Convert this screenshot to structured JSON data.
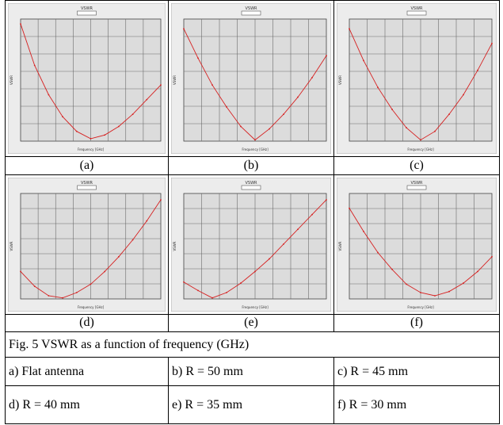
{
  "caption": "Fig. 5 VSWR as a function of frequency (GHz)",
  "panel_labels": [
    "(a)",
    "(b)",
    "(c)",
    "(d)",
    "(e)",
    "(f)"
  ],
  "options": [
    "a)   Flat antenna",
    "b)  R = 50 mm",
    "c)  R = 45 mm",
    "d) R = 40 mm",
    "e)  R = 35 mm",
    "f)  R = 30 mm"
  ],
  "plot_header": "VSWR",
  "axis_label_x": "Frequency [GHz]",
  "axis_label_y": "VSWR",
  "colors": {
    "curve": "#d62020",
    "grid": "#6b6b6b",
    "plot_bg": "#dcdcdc",
    "frame_bg": "#ececec"
  },
  "chart_data": [
    {
      "type": "line",
      "panel": "(a)",
      "x": [
        0,
        0.1,
        0.2,
        0.3,
        0.4,
        0.5,
        0.6,
        0.7,
        0.8,
        0.9,
        1.0
      ],
      "values": [
        5.8,
        4.1,
        2.9,
        2.0,
        1.4,
        1.1,
        1.25,
        1.6,
        2.1,
        2.7,
        3.3
      ],
      "ylim": [
        1,
        6
      ]
    },
    {
      "type": "line",
      "panel": "(b)",
      "x": [
        0,
        0.1,
        0.2,
        0.3,
        0.4,
        0.5,
        0.6,
        0.7,
        0.8,
        0.9,
        1.0
      ],
      "values": [
        5.6,
        4.4,
        3.3,
        2.4,
        1.6,
        1.05,
        1.5,
        2.1,
        2.8,
        3.6,
        4.5
      ],
      "ylim": [
        1,
        6
      ]
    },
    {
      "type": "line",
      "panel": "(c)",
      "x": [
        0,
        0.1,
        0.2,
        0.3,
        0.4,
        0.5,
        0.6,
        0.7,
        0.8,
        0.9,
        1.0
      ],
      "values": [
        5.6,
        4.3,
        3.2,
        2.3,
        1.55,
        1.05,
        1.4,
        2.1,
        2.9,
        3.9,
        5.0
      ],
      "ylim": [
        1,
        6
      ]
    },
    {
      "type": "line",
      "panel": "(d)",
      "x": [
        0,
        0.1,
        0.2,
        0.3,
        0.4,
        0.5,
        0.6,
        0.7,
        0.8,
        0.9,
        1.0
      ],
      "values": [
        2.3,
        1.6,
        1.15,
        1.05,
        1.3,
        1.7,
        2.3,
        3.0,
        3.8,
        4.7,
        5.7
      ],
      "ylim": [
        1,
        6
      ]
    },
    {
      "type": "line",
      "panel": "(e)",
      "x": [
        0,
        0.1,
        0.2,
        0.3,
        0.4,
        0.5,
        0.6,
        0.7,
        0.8,
        0.9,
        1.0
      ],
      "values": [
        1.8,
        1.4,
        1.05,
        1.3,
        1.75,
        2.3,
        2.9,
        3.6,
        4.3,
        5.0,
        5.7
      ],
      "ylim": [
        1,
        6
      ]
    },
    {
      "type": "line",
      "panel": "(f)",
      "x": [
        0,
        0.1,
        0.2,
        0.3,
        0.4,
        0.5,
        0.6,
        0.7,
        0.8,
        0.9,
        1.0
      ],
      "values": [
        5.3,
        4.2,
        3.2,
        2.4,
        1.7,
        1.3,
        1.15,
        1.35,
        1.75,
        2.3,
        3.0
      ],
      "ylim": [
        1,
        6
      ]
    }
  ]
}
